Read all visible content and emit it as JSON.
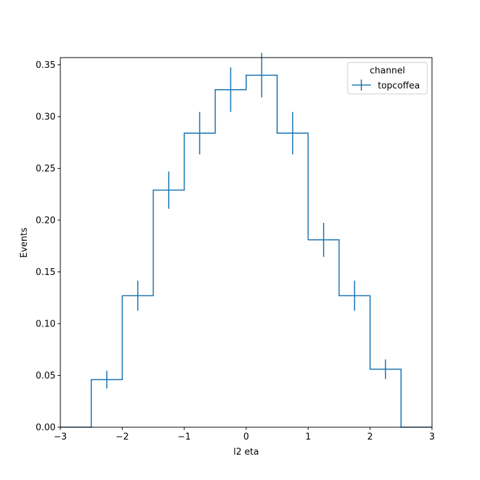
{
  "chart_data": {
    "type": "histogram",
    "xlabel": "l2 eta",
    "ylabel": "Events",
    "xlim": [
      -3,
      3
    ],
    "ylim": [
      0,
      0.357
    ],
    "grid": false,
    "bin_edges": [
      -3.0,
      -2.5,
      -2.0,
      -1.5,
      -1.0,
      -0.5,
      0.0,
      0.5,
      1.0,
      1.5,
      2.0,
      2.5,
      3.0
    ],
    "x_ticks": [
      -3,
      -2,
      -1,
      0,
      1,
      2,
      3
    ],
    "x_tick_labels": [
      "−3",
      "−2",
      "−1",
      "0",
      "1",
      "2",
      "3"
    ],
    "y_ticks": [
      0,
      0.05,
      0.1,
      0.15,
      0.2,
      0.25,
      0.3,
      0.35
    ],
    "y_tick_labels": [
      "0.00",
      "0.05",
      "0.10",
      "0.15",
      "0.20",
      "0.25",
      "0.30",
      "0.35"
    ],
    "legend": {
      "title": "channel",
      "placement": "top-right"
    },
    "series": [
      {
        "name": "topcoffea",
        "color": "#1f77b4",
        "values": [
          0.0,
          0.046,
          0.127,
          0.229,
          0.284,
          0.326,
          0.34,
          0.284,
          0.181,
          0.127,
          0.056,
          0.0
        ],
        "errors": [
          0.0,
          0.0085,
          0.0145,
          0.018,
          0.0205,
          0.0215,
          0.0215,
          0.0205,
          0.0165,
          0.0145,
          0.0095,
          0.0
        ]
      }
    ]
  }
}
